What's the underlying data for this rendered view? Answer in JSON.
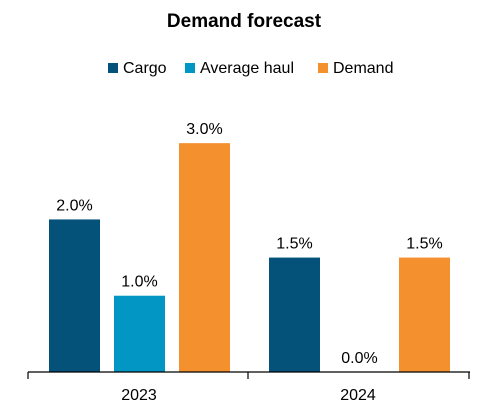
{
  "chart_data": {
    "type": "bar",
    "title": "Demand forecast",
    "xlabel": "",
    "ylabel": "",
    "categories": [
      "2023",
      "2024"
    ],
    "series": [
      {
        "name": "Cargo",
        "values": [
          2.0,
          1.5
        ],
        "labels": [
          "2.0%",
          "1.5%"
        ],
        "color": "#04527a"
      },
      {
        "name": "Average haul",
        "values": [
          1.0,
          0.0
        ],
        "labels": [
          "1.0%",
          "0.0%"
        ],
        "color": "#0196c3"
      },
      {
        "name": "Demand",
        "values": [
          3.0,
          1.5
        ],
        "labels": [
          "3.0%",
          "1.5%"
        ],
        "color": "#f5902e"
      }
    ],
    "ylim": [
      0,
      3.5
    ],
    "grid": false,
    "legend": "top-center"
  }
}
